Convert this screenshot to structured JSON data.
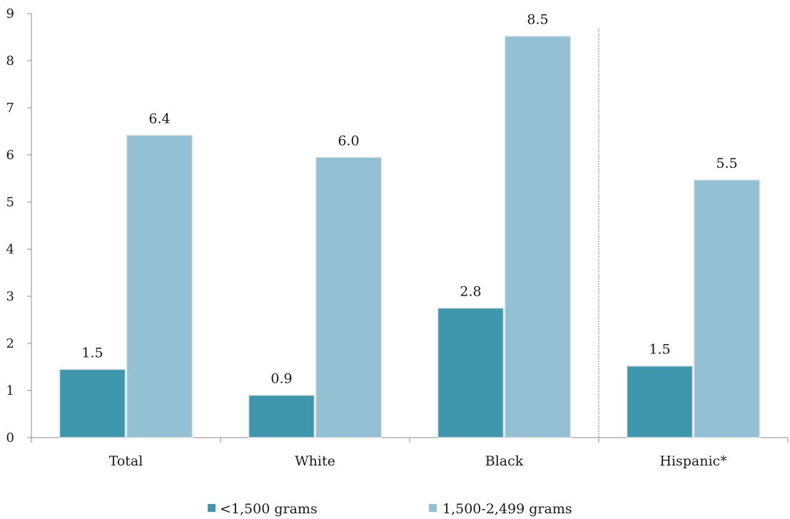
{
  "chart_data": {
    "type": "bar",
    "categories": [
      "Total",
      "White",
      "Black",
      "Hispanic*"
    ],
    "series": [
      {
        "name": "<1,500 grams",
        "values": [
          1.5,
          0.9,
          2.8,
          1.5
        ],
        "color": "#3f97ad"
      },
      {
        "name": "1,500-2,499 grams",
        "values": [
          6.4,
          6.0,
          8.5,
          5.5
        ],
        "color": "#93c1d3"
      }
    ],
    "data_labels": [
      [
        "1.5",
        "0.9",
        "2.8",
        "1.5"
      ],
      [
        "6.4",
        "6.0",
        "8.5",
        "5.5"
      ]
    ],
    "bar_heights": [
      [
        1.45,
        0.9,
        2.75,
        1.52
      ],
      [
        6.42,
        5.95,
        8.52,
        5.47
      ]
    ],
    "yticks": [
      "0",
      "1",
      "2",
      "3",
      "4",
      "5",
      "6",
      "7",
      "8",
      "9"
    ],
    "ylim": [
      0,
      9
    ],
    "grid": false,
    "legend_position": "bottom",
    "separator": "dotted line between Black and Hispanic*"
  }
}
